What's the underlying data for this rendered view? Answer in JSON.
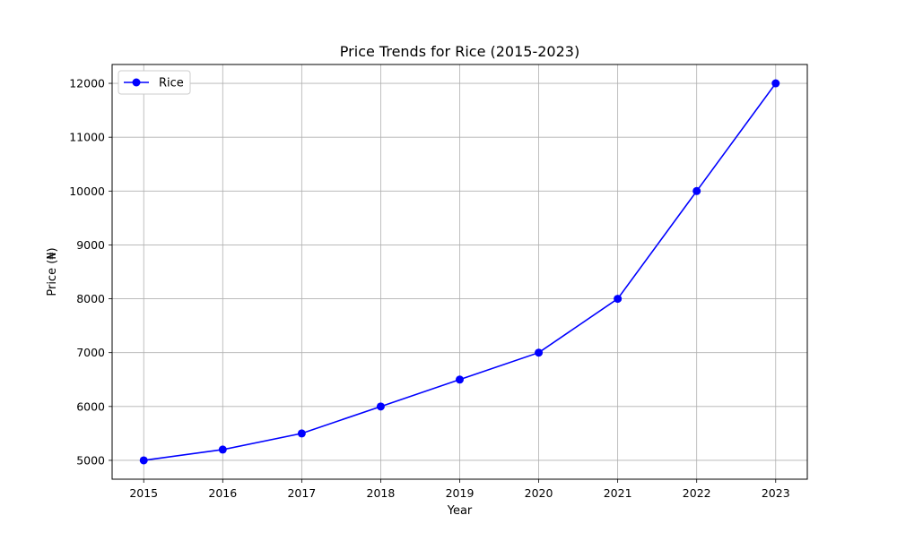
{
  "chart_data": {
    "type": "line",
    "title": "Price Trends for Rice (2015-2023)",
    "xlabel": "Year",
    "ylabel": "Price (₦)",
    "x": [
      2015,
      2016,
      2017,
      2018,
      2019,
      2020,
      2021,
      2022,
      2023
    ],
    "series": [
      {
        "name": "Rice",
        "values": [
          5000,
          5200,
          5500,
          6000,
          6500,
          7000,
          8000,
          10000,
          12000
        ],
        "color": "#0000ff",
        "marker": "circle"
      }
    ],
    "xlim": [
      2014.6,
      2023.4
    ],
    "ylim": [
      4650,
      12350
    ],
    "xticks": [
      "2015",
      "2016",
      "2017",
      "2018",
      "2019",
      "2020",
      "2021",
      "2022",
      "2023"
    ],
    "yticks": [
      "5000",
      "6000",
      "7000",
      "8000",
      "9000",
      "10000",
      "11000",
      "12000"
    ],
    "grid": true,
    "legend_position": "top-left"
  }
}
